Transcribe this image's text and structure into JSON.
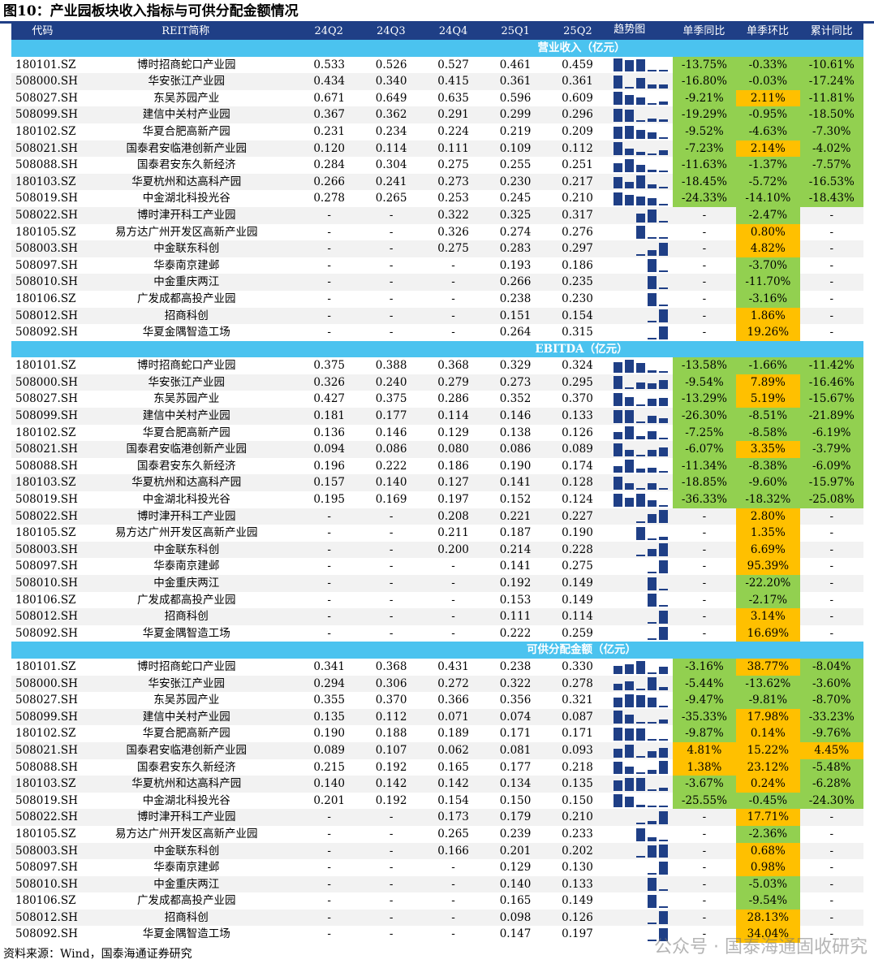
{
  "title": "图10：产业园板块收入指标与可供分配金额情况",
  "source": "资料来源：Wind，国泰海通证券研究",
  "watermark": "公众号 · 国泰海通固收研究",
  "colors": {
    "header_bg": "#1f3f86",
    "section_bg": "#4bc3ef",
    "negative_bg": "#92d050",
    "positive_bg": "#ffc000",
    "bar": "#1f3f86"
  },
  "headers": [
    "代码",
    "REIT简称",
    "24Q2",
    "24Q3",
    "24Q4",
    "25Q1",
    "25Q2",
    "趋势图",
    "单季同比",
    "单季环比",
    "累计同比"
  ],
  "sections": [
    {
      "title": "营业收入（亿元）",
      "rows": [
        [
          "180101.SZ",
          "博时招商蛇口产业园",
          "0.533",
          "0.526",
          "0.527",
          "0.461",
          "0.459",
          "-13.75%",
          "-0.33%",
          "-10.61%"
        ],
        [
          "508000.SH",
          "华安张江产业园",
          "0.434",
          "0.340",
          "0.415",
          "0.361",
          "0.361",
          "-16.80%",
          "-0.03%",
          "-17.24%"
        ],
        [
          "508027.SH",
          "东吴苏园产业",
          "0.671",
          "0.649",
          "0.635",
          "0.596",
          "0.609",
          "-9.21%",
          "2.11%",
          "-11.81%"
        ],
        [
          "508099.SH",
          "建信中关村产业园",
          "0.367",
          "0.362",
          "0.291",
          "0.299",
          "0.296",
          "-19.29%",
          "-0.95%",
          "-18.50%"
        ],
        [
          "180102.SZ",
          "华夏合肥高新产园",
          "0.231",
          "0.234",
          "0.224",
          "0.219",
          "0.209",
          "-9.52%",
          "-4.63%",
          "-7.30%"
        ],
        [
          "508021.SH",
          "国泰君安临港创新产业园",
          "0.120",
          "0.114",
          "0.111",
          "0.109",
          "0.112",
          "-7.23%",
          "2.14%",
          "-4.02%"
        ],
        [
          "508088.SH",
          "国泰君安东久新经济",
          "0.284",
          "0.304",
          "0.275",
          "0.255",
          "0.251",
          "-11.63%",
          "-1.37%",
          "-7.57%"
        ],
        [
          "180103.SZ",
          "华夏杭州和达高科产园",
          "0.266",
          "0.241",
          "0.273",
          "0.230",
          "0.217",
          "-18.45%",
          "-5.72%",
          "-16.53%"
        ],
        [
          "508019.SH",
          "中金湖北科投光谷",
          "0.278",
          "0.265",
          "0.253",
          "0.245",
          "0.210",
          "-24.33%",
          "-14.10%",
          "-18.43%"
        ],
        [
          "508022.SH",
          "博时津开科工产业园",
          "-",
          "-",
          "0.322",
          "0.325",
          "0.317",
          "-",
          "-2.47%",
          "-"
        ],
        [
          "180105.SZ",
          "易方达广州开发区高新产业园",
          "-",
          "-",
          "0.326",
          "0.274",
          "0.276",
          "-",
          "0.80%",
          "-"
        ],
        [
          "508003.SH",
          "中金联东科创",
          "-",
          "-",
          "0.275",
          "0.283",
          "0.297",
          "-",
          "4.82%",
          "-"
        ],
        [
          "508097.SH",
          "华泰南京建邺",
          "-",
          "-",
          "-",
          "0.193",
          "0.186",
          "-",
          "-3.70%",
          "-"
        ],
        [
          "508010.SH",
          "中金重庆两江",
          "-",
          "-",
          "-",
          "0.266",
          "0.235",
          "-",
          "-11.70%",
          "-"
        ],
        [
          "180106.SZ",
          "广发成都高投产业园",
          "-",
          "-",
          "-",
          "0.238",
          "0.230",
          "-",
          "-3.16%",
          "-"
        ],
        [
          "508012.SH",
          "招商科创",
          "-",
          "-",
          "-",
          "0.151",
          "0.154",
          "-",
          "1.86%",
          "-"
        ],
        [
          "508092.SH",
          "华夏金隅智造工场",
          "-",
          "-",
          "-",
          "0.264",
          "0.315",
          "-",
          "19.26%",
          "-"
        ]
      ]
    },
    {
      "title": "EBITDA（亿元）",
      "rows": [
        [
          "180101.SZ",
          "博时招商蛇口产业园",
          "0.375",
          "0.388",
          "0.368",
          "0.329",
          "0.324",
          "-13.58%",
          "-1.66%",
          "-11.42%"
        ],
        [
          "508000.SH",
          "华安张江产业园",
          "0.326",
          "0.240",
          "0.279",
          "0.273",
          "0.295",
          "-9.54%",
          "7.89%",
          "-16.46%"
        ],
        [
          "508027.SH",
          "东吴苏园产业",
          "0.427",
          "0.375",
          "0.286",
          "0.352",
          "0.370",
          "-13.29%",
          "5.19%",
          "-15.67%"
        ],
        [
          "508099.SH",
          "建信中关村产业园",
          "0.181",
          "0.177",
          "0.114",
          "0.146",
          "0.133",
          "-26.30%",
          "-8.51%",
          "-21.89%"
        ],
        [
          "180102.SZ",
          "华夏合肥高新产园",
          "0.136",
          "0.146",
          "0.129",
          "0.138",
          "0.126",
          "-7.25%",
          "-8.58%",
          "-6.19%"
        ],
        [
          "508021.SH",
          "国泰君安临港创新产业园",
          "0.094",
          "0.086",
          "0.080",
          "0.086",
          "0.089",
          "-6.07%",
          "3.35%",
          "-3.79%"
        ],
        [
          "508088.SH",
          "国泰君安东久新经济",
          "0.196",
          "0.222",
          "0.186",
          "0.190",
          "0.174",
          "-11.34%",
          "-8.38%",
          "-6.09%"
        ],
        [
          "180103.SZ",
          "华夏杭州和达高科产园",
          "0.157",
          "0.140",
          "0.127",
          "0.141",
          "0.128",
          "-18.85%",
          "-9.60%",
          "-15.97%"
        ],
        [
          "508019.SH",
          "中金湖北科投光谷",
          "0.195",
          "0.169",
          "0.197",
          "0.152",
          "0.124",
          "-36.33%",
          "-18.32%",
          "-25.08%"
        ],
        [
          "508022.SH",
          "博时津开科工产业园",
          "-",
          "-",
          "0.208",
          "0.221",
          "0.227",
          "-",
          "2.80%",
          "-"
        ],
        [
          "180105.SZ",
          "易方达广州开发区高新产业园",
          "-",
          "-",
          "0.211",
          "0.187",
          "0.190",
          "-",
          "1.35%",
          "-"
        ],
        [
          "508003.SH",
          "中金联东科创",
          "-",
          "-",
          "0.200",
          "0.214",
          "0.228",
          "-",
          "6.69%",
          "-"
        ],
        [
          "508097.SH",
          "华泰南京建邺",
          "-",
          "-",
          "-",
          "0.141",
          "0.275",
          "-",
          "95.39%",
          "-"
        ],
        [
          "508010.SH",
          "中金重庆两江",
          "-",
          "-",
          "-",
          "0.192",
          "0.149",
          "-",
          "-22.20%",
          "-"
        ],
        [
          "180106.SZ",
          "广发成都高投产业园",
          "-",
          "-",
          "-",
          "0.153",
          "0.149",
          "-",
          "-2.17%",
          "-"
        ],
        [
          "508012.SH",
          "招商科创",
          "-",
          "-",
          "-",
          "0.111",
          "0.114",
          "-",
          "3.14%",
          "-"
        ],
        [
          "508092.SH",
          "华夏金隅智造工场",
          "-",
          "-",
          "-",
          "0.222",
          "0.259",
          "-",
          "16.69%",
          "-"
        ]
      ]
    },
    {
      "title": "可供分配金额（亿元）",
      "rows": [
        [
          "180101.SZ",
          "博时招商蛇口产业园",
          "0.341",
          "0.368",
          "0.431",
          "0.238",
          "0.330",
          "-3.16%",
          "38.77%",
          "-8.04%"
        ],
        [
          "508000.SH",
          "华安张江产业园",
          "0.294",
          "0.306",
          "0.272",
          "0.322",
          "0.278",
          "-5.44%",
          "-13.62%",
          "-3.60%"
        ],
        [
          "508027.SH",
          "东吴苏园产业",
          "0.355",
          "0.370",
          "0.366",
          "0.356",
          "0.321",
          "-9.47%",
          "-9.81%",
          "-8.70%"
        ],
        [
          "508099.SH",
          "建信中关村产业园",
          "0.135",
          "0.112",
          "0.071",
          "0.074",
          "0.087",
          "-35.33%",
          "17.98%",
          "-33.23%"
        ],
        [
          "180102.SZ",
          "华夏合肥高新产园",
          "0.190",
          "0.188",
          "0.189",
          "0.171",
          "0.171",
          "-9.87%",
          "0.14%",
          "-9.76%"
        ],
        [
          "508021.SH",
          "国泰君安临港创新产业园",
          "0.089",
          "0.107",
          "0.062",
          "0.081",
          "0.093",
          "4.81%",
          "15.22%",
          "4.45%"
        ],
        [
          "508088.SH",
          "国泰君安东久新经济",
          "0.215",
          "0.192",
          "0.165",
          "0.177",
          "0.218",
          "1.38%",
          "23.12%",
          "-5.48%"
        ],
        [
          "180103.SZ",
          "华夏杭州和达高科产园",
          "0.140",
          "0.142",
          "0.142",
          "0.134",
          "0.135",
          "-3.67%",
          "0.24%",
          "-6.28%"
        ],
        [
          "508019.SH",
          "中金湖北科投光谷",
          "0.201",
          "0.192",
          "0.154",
          "0.150",
          "0.150",
          "-25.55%",
          "-0.45%",
          "-24.30%"
        ],
        [
          "508022.SH",
          "博时津开科工产业园",
          "-",
          "-",
          "0.173",
          "0.179",
          "0.210",
          "-",
          "17.71%",
          "-"
        ],
        [
          "180105.SZ",
          "易方达广州开发区高新产业园",
          "-",
          "-",
          "0.265",
          "0.239",
          "0.233",
          "-",
          "-2.36%",
          "-"
        ],
        [
          "508003.SH",
          "中金联东科创",
          "-",
          "-",
          "0.166",
          "0.201",
          "0.202",
          "-",
          "0.68%",
          "-"
        ],
        [
          "508097.SH",
          "华泰南京建邺",
          "-",
          "-",
          "-",
          "0.129",
          "0.130",
          "-",
          "0.98%",
          "-"
        ],
        [
          "508010.SH",
          "中金重庆两江",
          "-",
          "-",
          "-",
          "0.140",
          "0.133",
          "-",
          "-5.03%",
          "-"
        ],
        [
          "180106.SZ",
          "广发成都高投产业园",
          "-",
          "-",
          "-",
          "0.165",
          "0.149",
          "-",
          "-9.54%",
          "-"
        ],
        [
          "508012.SH",
          "招商科创",
          "-",
          "-",
          "-",
          "0.098",
          "0.126",
          "-",
          "28.13%",
          "-"
        ],
        [
          "508092.SH",
          "华夏金隅智造工场",
          "-",
          "-",
          "-",
          "0.147",
          "0.197",
          "-",
          "34.04%",
          "-"
        ]
      ]
    }
  ]
}
